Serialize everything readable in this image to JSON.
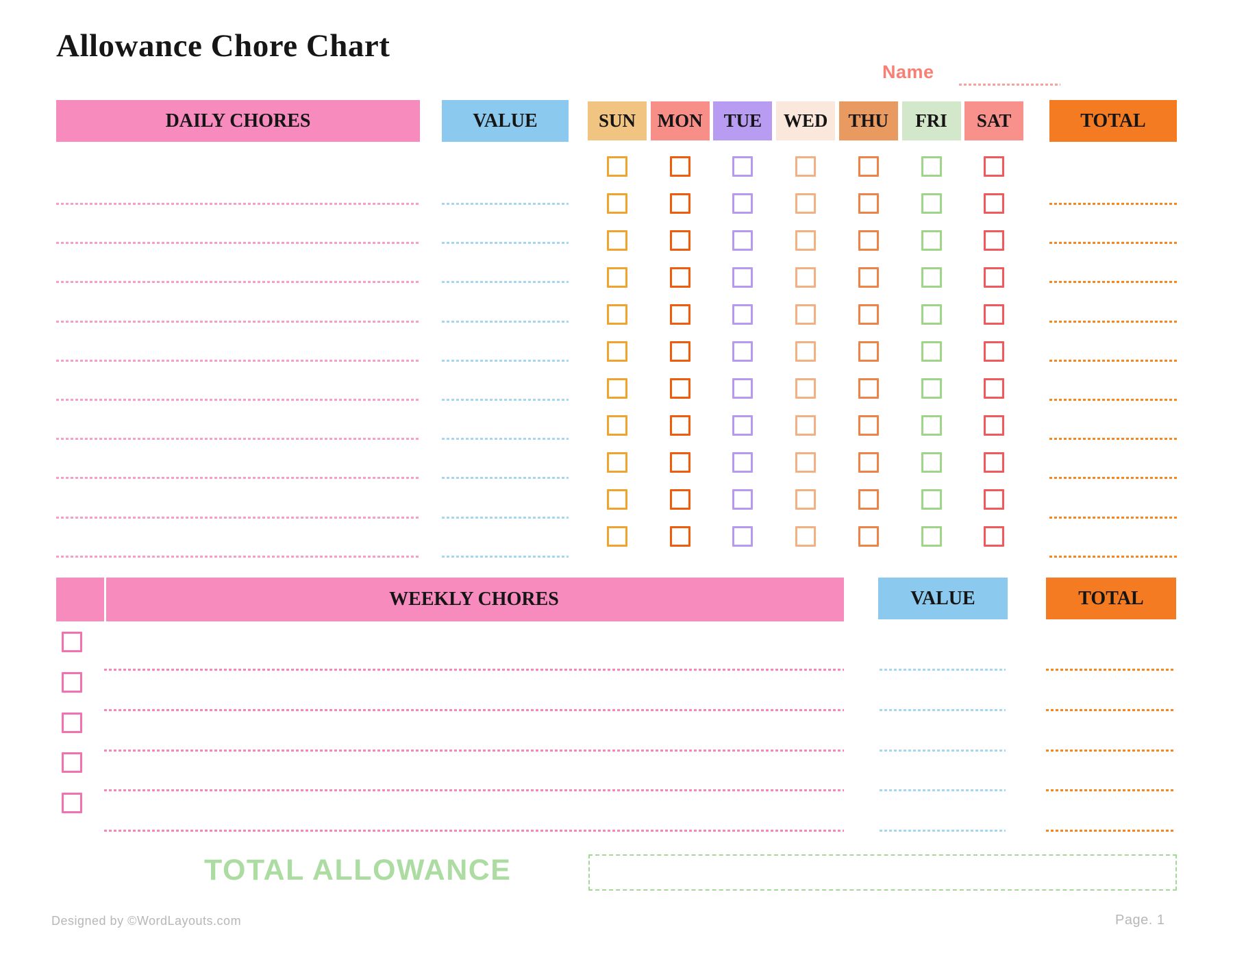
{
  "page": {
    "title": "Allowance Chore Chart",
    "name_label": "Name",
    "name_value": "",
    "footer_left": "Designed by ©WordLayouts.com",
    "footer_right": "Page. 1"
  },
  "daily_section": {
    "chores_header": "DAILY CHORES",
    "value_header": "VALUE",
    "total_header": "TOTAL",
    "chores_header_color": "#F78BBE",
    "value_header_color": "#8CC9EE",
    "total_header_color": "#F47B21",
    "checkbox_rows": 11,
    "writing_lines": 10,
    "checkboxes_checked": false,
    "chore_line_color": "#F89FC9",
    "value_line_color": "#A6D7F0",
    "total_line_color": "#F6871F",
    "days": [
      {
        "label": "SUN",
        "header_color": "#F1C581",
        "checkbox_color": "#EFA42F"
      },
      {
        "label": "MON",
        "header_color": "#F78E88",
        "checkbox_color": "#EE5C0C"
      },
      {
        "label": "TUE",
        "header_color": "#B89CF1",
        "checkbox_color": "#B79AF0"
      },
      {
        "label": "WED",
        "header_color": "#FBE8DC",
        "checkbox_color": "#F3B083"
      },
      {
        "label": "THU",
        "header_color": "#E99A61",
        "checkbox_color": "#EE8347"
      },
      {
        "label": "FRI",
        "header_color": "#D3E7CB",
        "checkbox_color": "#9FD589"
      },
      {
        "label": "SAT",
        "header_color": "#F8908B",
        "checkbox_color": "#F15A5D"
      }
    ]
  },
  "weekly_section": {
    "chores_header": "WEEKLY CHORES",
    "value_header": "VALUE",
    "total_header": "TOTAL",
    "chores_header_color": "#F78BBE",
    "value_header_color": "#8CC9EE",
    "total_header_color": "#F47B21",
    "rows": 5,
    "checkboxes_checked": false,
    "checkbox_color": "#F172AE",
    "chore_line_color": "#F586BC",
    "value_line_color": "#A6D7F0",
    "total_line_color": "#F6871F"
  },
  "totals": {
    "total_allowance_label": "TOTAL ALLOWANCE",
    "total_allowance_value": "",
    "label_color": "#ACDCA2",
    "box_border_color": "#A5D79B"
  }
}
